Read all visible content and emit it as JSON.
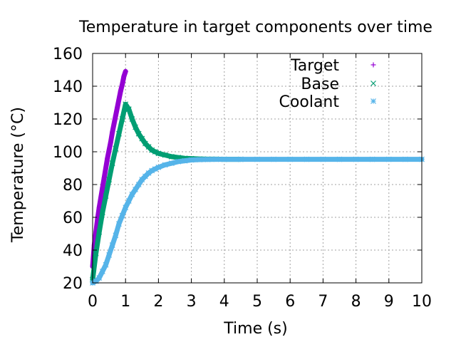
{
  "chart_data": {
    "type": "scatter",
    "title": "Temperature in target components over time",
    "xlabel": "Time (s)",
    "ylabel": "Temperature (°C)",
    "xlim": [
      0,
      10
    ],
    "ylim": [
      20,
      160
    ],
    "xticks": [
      0,
      1,
      2,
      3,
      4,
      5,
      6,
      7,
      8,
      9,
      10
    ],
    "yticks": [
      20,
      40,
      60,
      80,
      100,
      120,
      140,
      160
    ],
    "grid": true,
    "legend_position": "top-right",
    "series": [
      {
        "name": "Target",
        "marker": "plus",
        "color": "#9400d3",
        "x": [
          0.0,
          0.05,
          0.1,
          0.15,
          0.2,
          0.25,
          0.3,
          0.35,
          0.4,
          0.45,
          0.5,
          0.55,
          0.6,
          0.65,
          0.7,
          0.75,
          0.8,
          0.85,
          0.9,
          0.95,
          1.0
        ],
        "y": [
          30,
          43,
          51,
          59,
          66,
          72,
          78,
          84,
          90,
          96,
          101,
          106,
          112,
          117,
          122,
          127,
          132,
          137,
          141,
          146,
          149
        ]
      },
      {
        "name": "Base",
        "marker": "cross",
        "color": "#009e73",
        "x": [
          0.0,
          0.1,
          0.2,
          0.3,
          0.4,
          0.5,
          0.6,
          0.7,
          0.8,
          0.9,
          1.0,
          1.1,
          1.2,
          1.3,
          1.4,
          1.5,
          1.6,
          1.7,
          1.8,
          1.9,
          2.0,
          2.2,
          2.4,
          2.6,
          2.8,
          3.0,
          3.25,
          3.5,
          3.75,
          4.0,
          4.5
        ],
        "y": [
          22,
          38,
          51,
          63,
          73,
          83,
          93,
          102,
          111,
          120,
          129,
          126,
          120,
          115,
          111,
          108,
          105,
          103,
          101,
          100,
          99,
          98,
          97,
          96.5,
          96,
          95.8,
          95.6,
          95.5,
          95.5,
          95.4,
          95.4
        ]
      },
      {
        "name": "Coolant",
        "marker": "star",
        "color": "#56b4e9",
        "x": [
          0.0,
          0.1,
          0.2,
          0.3,
          0.4,
          0.5,
          0.6,
          0.7,
          0.8,
          0.9,
          1.0,
          1.1,
          1.2,
          1.3,
          1.4,
          1.5,
          1.6,
          1.7,
          1.8,
          1.9,
          2.0,
          2.2,
          2.4,
          2.6,
          2.8,
          3.0,
          3.25,
          3.5,
          3.75,
          4.0,
          4.5,
          5.0,
          5.5,
          6.0,
          6.5,
          7.0,
          7.5,
          8.0,
          8.5,
          9.0,
          9.5,
          10.0
        ],
        "y": [
          20,
          21,
          23,
          27,
          31,
          37,
          43,
          49,
          56,
          61,
          66,
          70,
          74,
          77,
          80,
          83,
          85,
          87,
          88.5,
          89.5,
          90.5,
          92,
          93,
          94,
          94.5,
          95,
          95.2,
          95.3,
          95.4,
          95.4,
          95.4,
          95.4,
          95.4,
          95.4,
          95.4,
          95.4,
          95.4,
          95.4,
          95.4,
          95.4,
          95.4,
          95.4
        ]
      }
    ]
  }
}
